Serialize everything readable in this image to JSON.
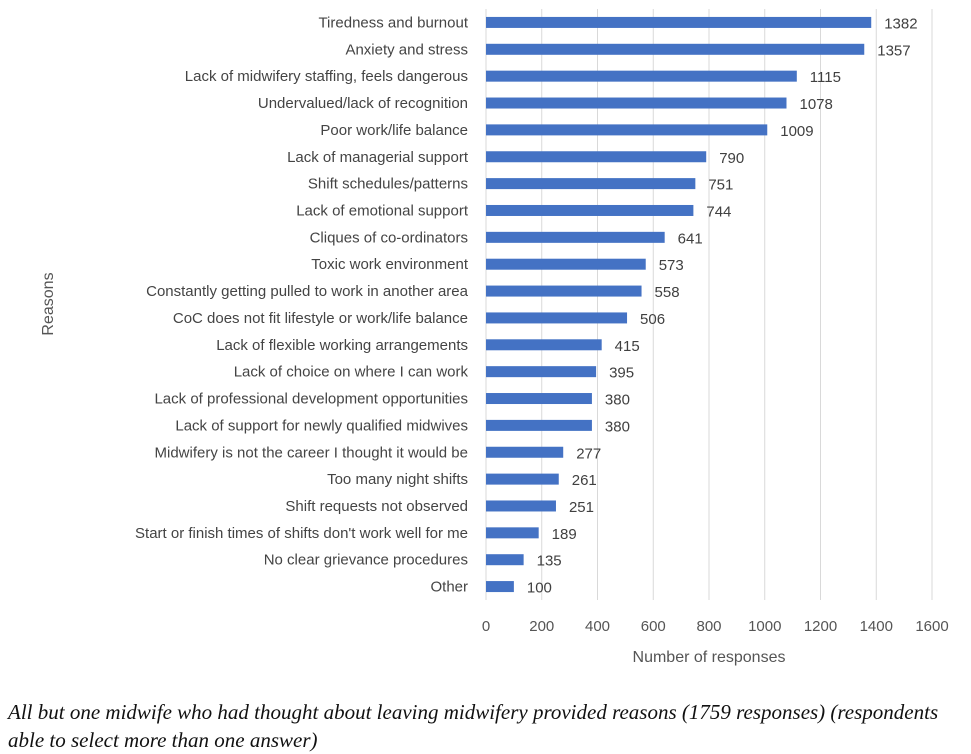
{
  "chart_data": {
    "type": "bar",
    "orientation": "horizontal",
    "title": "",
    "xlabel": "Number of responses",
    "ylabel": "Reasons",
    "xlim": [
      0,
      1600
    ],
    "xticks": [
      0,
      200,
      400,
      600,
      800,
      1000,
      1200,
      1400,
      1600
    ],
    "grid": "vertical",
    "bar_color": "#4472C4",
    "categories": [
      "Tiredness and burnout",
      "Anxiety and stress",
      "Lack of midwifery staffing, feels dangerous",
      "Undervalued/lack of recognition",
      "Poor work/life balance",
      "Lack of managerial support",
      "Shift schedules/patterns",
      "Lack of emotional support",
      "Cliques of co-ordinators",
      "Toxic work environment",
      "Constantly getting pulled to work in another area",
      "CoC does not fit lifestyle or work/life balance",
      "Lack of flexible working arrangements",
      "Lack of choice on where I can work",
      "Lack of professional development opportunities",
      "Lack of support for newly qualified midwives",
      "Midwifery is not the career I thought it would be",
      "Too many night shifts",
      "Shift requests not observed",
      "Start or finish times of shifts don't work well for me",
      "No clear grievance procedures",
      "Other"
    ],
    "values": [
      1382,
      1357,
      1115,
      1078,
      1009,
      790,
      751,
      744,
      641,
      573,
      558,
      506,
      415,
      395,
      380,
      380,
      277,
      261,
      251,
      189,
      135,
      100
    ]
  },
  "caption": "All but one midwife who had thought about leaving midwifery provided reasons (1759 responses) (respondents able to select more than one answer)"
}
